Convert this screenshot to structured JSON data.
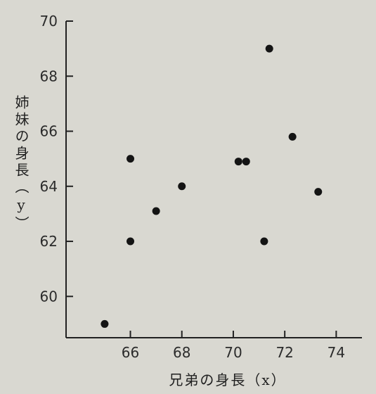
{
  "chart_data": {
    "type": "scatter",
    "xlabel": "兄弟の身長（x）",
    "ylabel": "姉妹の身長（y）",
    "xlim": [
      63.5,
      75
    ],
    "ylim": [
      58.5,
      70
    ],
    "x_ticks": [
      "66",
      "68",
      "70",
      "72",
      "74"
    ],
    "y_ticks": [
      "60",
      "62",
      "64",
      "66",
      "68",
      "70"
    ],
    "grid": false,
    "series": [
      {
        "points": [
          {
            "x": 65,
            "y": 59
          },
          {
            "x": 66,
            "y": 62
          },
          {
            "x": 66,
            "y": 65
          },
          {
            "x": 67,
            "y": 63.1
          },
          {
            "x": 68,
            "y": 64
          },
          {
            "x": 70.2,
            "y": 64.9
          },
          {
            "x": 70.5,
            "y": 64.9
          },
          {
            "x": 71.2,
            "y": 62
          },
          {
            "x": 71.4,
            "y": 69
          },
          {
            "x": 72.3,
            "y": 65.8
          },
          {
            "x": 73.3,
            "y": 63.8
          }
        ]
      }
    ],
    "colors": {
      "marker": "#141414",
      "axis": "#222222",
      "background": "#d9d8d1"
    }
  }
}
